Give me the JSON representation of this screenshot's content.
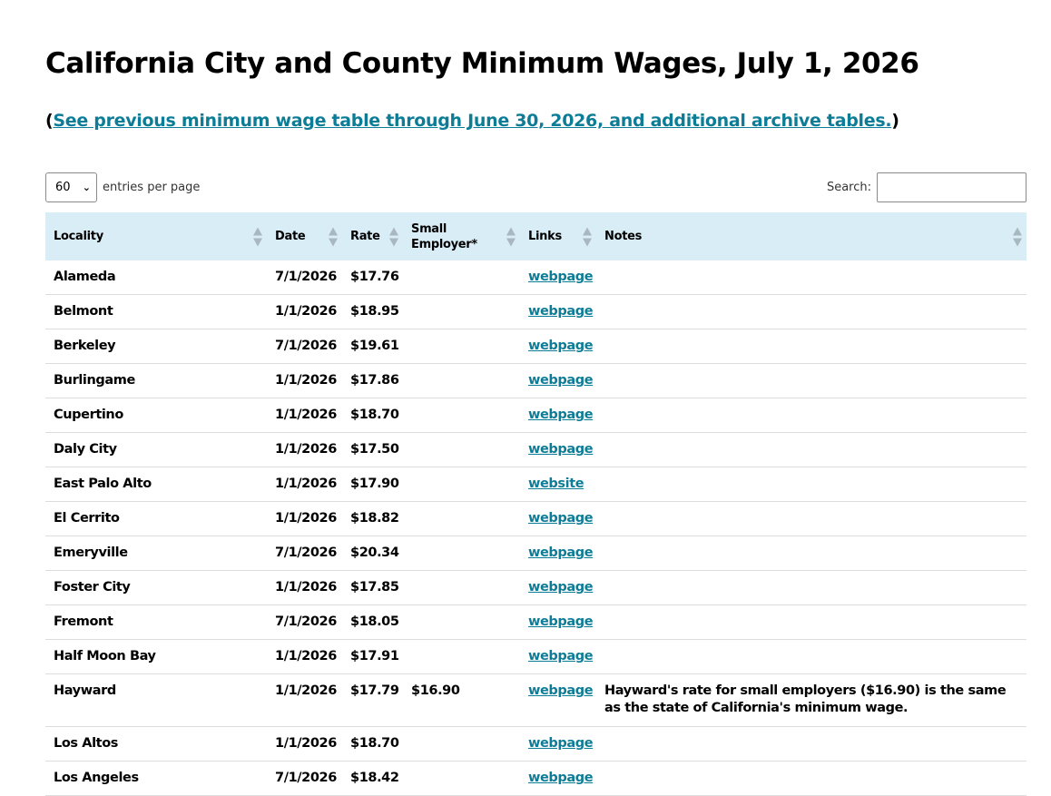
{
  "page": {
    "title": "California City and County Minimum Wages, July 1, 2026",
    "archive_open": "(",
    "archive_link": "See previous minimum wage table through June 30, 2026, and additional archive tables.",
    "archive_close": ")"
  },
  "controls": {
    "per_page_value": "60",
    "per_page_label": "entries per page",
    "search_label": "Search:",
    "search_value": ""
  },
  "table": {
    "headers": {
      "locality": "Locality",
      "date": "Date",
      "rate": "Rate",
      "small_employer": "Small Employer*",
      "links": "Links",
      "notes": "Notes"
    },
    "rows": [
      {
        "locality": "Alameda",
        "date": "7/1/2026",
        "rate": "$17.76",
        "small": "",
        "link": "webpage",
        "notes": ""
      },
      {
        "locality": "Belmont",
        "date": "1/1/2026",
        "rate": "$18.95",
        "small": "",
        "link": "webpage",
        "notes": ""
      },
      {
        "locality": "Berkeley",
        "date": "7/1/2026",
        "rate": "$19.61",
        "small": "",
        "link": "webpage",
        "notes": ""
      },
      {
        "locality": "Burlingame",
        "date": "1/1/2026",
        "rate": "$17.86",
        "small": "",
        "link": "webpage",
        "notes": ""
      },
      {
        "locality": "Cupertino",
        "date": "1/1/2026",
        "rate": "$18.70",
        "small": "",
        "link": "webpage",
        "notes": ""
      },
      {
        "locality": "Daly City",
        "date": "1/1/2026",
        "rate": "$17.50",
        "small": "",
        "link": "webpage",
        "notes": ""
      },
      {
        "locality": "East Palo Alto",
        "date": "1/1/2026",
        "rate": "$17.90",
        "small": "",
        "link": "website",
        "notes": ""
      },
      {
        "locality": "El Cerrito",
        "date": "1/1/2026",
        "rate": "$18.82",
        "small": "",
        "link": "webpage",
        "notes": ""
      },
      {
        "locality": "Emeryville",
        "date": "7/1/2026",
        "rate": "$20.34",
        "small": "",
        "link": "webpage",
        "notes": ""
      },
      {
        "locality": "Foster City",
        "date": "1/1/2026",
        "rate": "$17.85",
        "small": "",
        "link": "webpage",
        "notes": ""
      },
      {
        "locality": "Fremont",
        "date": "7/1/2026",
        "rate": "$18.05",
        "small": "",
        "link": "webpage",
        "notes": ""
      },
      {
        "locality": "Half Moon Bay",
        "date": "1/1/2026",
        "rate": "$17.91",
        "small": "",
        "link": "webpage",
        "notes": ""
      },
      {
        "locality": "Hayward",
        "date": "1/1/2026",
        "rate": "$17.79",
        "small": "$16.90",
        "link": "webpage",
        "notes": "Hayward's rate for small employers ($16.90) is the same as the state of California's minimum wage."
      },
      {
        "locality": "Los Altos",
        "date": "1/1/2026",
        "rate": "$18.70",
        "small": "",
        "link": "webpage",
        "notes": ""
      },
      {
        "locality": "Los Angeles",
        "date": "7/1/2026",
        "rate": "$18.42",
        "small": "",
        "link": "webpage",
        "notes": ""
      }
    ]
  },
  "colors": {
    "link": "#0d7d97",
    "header_bg": "#d9edf7"
  }
}
